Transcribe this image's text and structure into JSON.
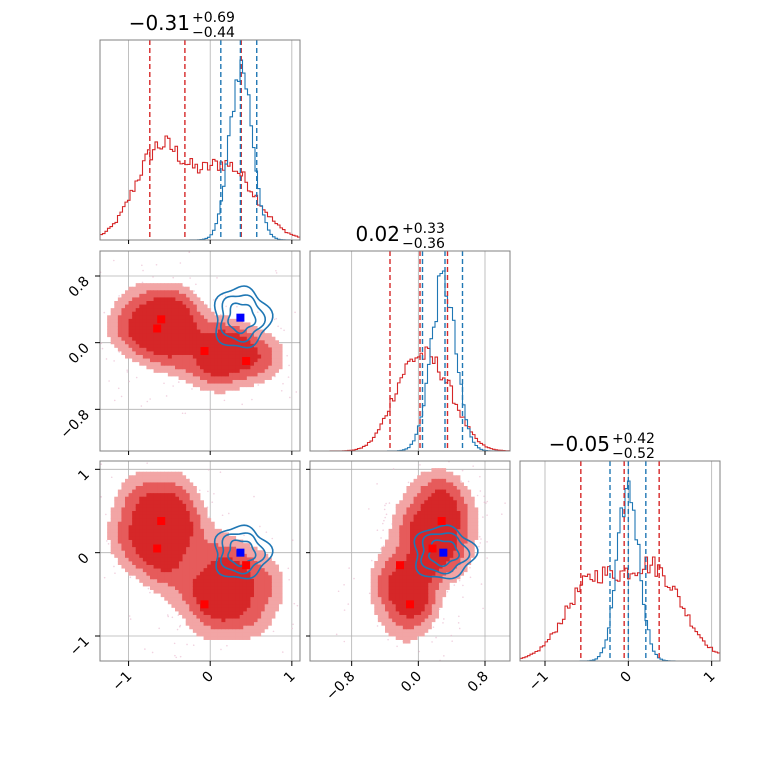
{
  "colors": {
    "red": "#d62728",
    "red_mid": "#e65b5b",
    "red_light": "#f2a5a5",
    "blue": "#1f77b4",
    "marker_blue": "#0000ff",
    "marker_red": "#ff0000",
    "grid": "#b0b0b0",
    "frame": "#808080"
  },
  "chart_data": {
    "type": "corner",
    "axes_limits": {
      "x": [
        -1.35,
        1.1
      ],
      "y": [
        -1.3,
        1.1
      ],
      "z": [
        -1.3,
        1.1
      ]
    },
    "ticks": {
      "x": {
        "values": [
          -1,
          0,
          1
        ],
        "labels": [
          "−1",
          "0",
          "1"
        ]
      },
      "y": {
        "values": [
          -0.8,
          0.0,
          0.8
        ],
        "labels": [
          "−0.8",
          "0.0",
          "0.8"
        ]
      },
      "z": {
        "values": [
          -1,
          0,
          1
        ],
        "labels": [
          "−1",
          "0",
          "1"
        ]
      }
    },
    "titles": [
      {
        "value": "−0.31",
        "plus": "+0.69",
        "minus": "−0.44"
      },
      {
        "value": "0.02",
        "plus": "+0.33",
        "minus": "−0.36"
      },
      {
        "value": "−0.05",
        "plus": "+0.42",
        "minus": "−0.52"
      }
    ],
    "quantiles": {
      "red": {
        "x": [
          -0.74,
          -0.31,
          0.38
        ],
        "y": [
          -0.34,
          0.02,
          0.35
        ],
        "z": [
          -0.57,
          -0.05,
          0.37
        ]
      },
      "blue": {
        "x": [
          0.13,
          0.37,
          0.57
        ],
        "y": [
          0.05,
          0.32,
          0.53
        ],
        "z": [
          -0.22,
          0.0,
          0.21
        ]
      }
    },
    "markers": {
      "red": {
        "x": [
          -0.6,
          -0.65,
          -0.07,
          0.44
        ],
        "y": [
          0.28,
          0.17,
          -0.1,
          -0.22
        ],
        "z": [
          0.38,
          0.05,
          -0.62,
          -0.15
        ]
      },
      "blue": {
        "x": 0.37,
        "y": 0.3,
        "z": 0.0
      }
    },
    "red_modes": [
      {
        "x": -0.62,
        "y": 0.22,
        "z": 0.3,
        "w": 0.55,
        "sx": 0.3,
        "sy": 0.25,
        "sz": 0.35
      },
      {
        "x": 0.2,
        "y": -0.15,
        "z": -0.45,
        "w": 0.45,
        "sx": 0.35,
        "sy": 0.22,
        "sz": 0.32
      }
    ],
    "blue_mode": {
      "x": 0.38,
      "y": 0.3,
      "z": 0.0,
      "sx": 0.14,
      "sy": 0.15,
      "sz": 0.13
    }
  }
}
